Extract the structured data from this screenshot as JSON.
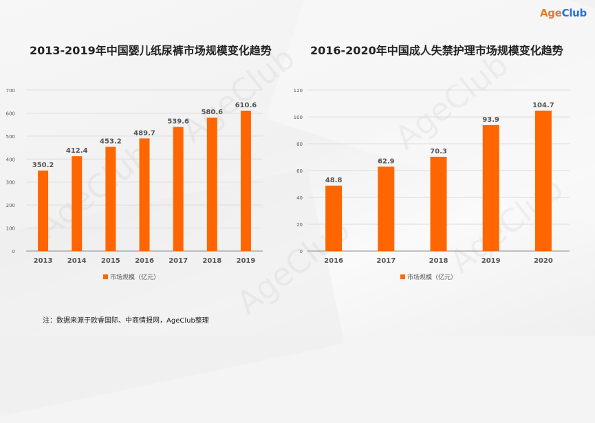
{
  "logo": {
    "age": "Age",
    "club": "Club"
  },
  "watermark": "AgeClub",
  "note": "注：数据来源于欧睿国际、中商情报网，AgeClub整理",
  "colors": {
    "bar": "#ff6600",
    "axis": "#888888",
    "grid": "#dddddd",
    "label": "#555555"
  },
  "chart_data": [
    {
      "type": "bar",
      "title": "2013-2019年中国婴儿纸尿裤市场规模变化趋势",
      "categories": [
        "2013",
        "2014",
        "2015",
        "2016",
        "2017",
        "2018",
        "2019"
      ],
      "series": [
        {
          "name": "市场规模（亿元）",
          "values": [
            350.2,
            412.4,
            453.2,
            489.7,
            539.6,
            580.6,
            610.6
          ]
        }
      ],
      "yticks": [
        0,
        100,
        200,
        300,
        400,
        500,
        600,
        700
      ],
      "ylim": [
        0,
        700
      ],
      "grid": true,
      "legend": "bottom"
    },
    {
      "type": "bar",
      "title": "2016-2020年中国成人失禁护理市场规模变化趋势",
      "categories": [
        "2016",
        "2017",
        "2018",
        "2019",
        "2020"
      ],
      "series": [
        {
          "name": "市场规模（亿元）",
          "values": [
            48.8,
            62.9,
            70.3,
            93.9,
            104.7
          ]
        }
      ],
      "yticks": [
        0,
        20,
        40,
        60,
        80,
        100,
        120
      ],
      "ylim": [
        0,
        120
      ],
      "grid": true,
      "legend": "bottom"
    }
  ]
}
